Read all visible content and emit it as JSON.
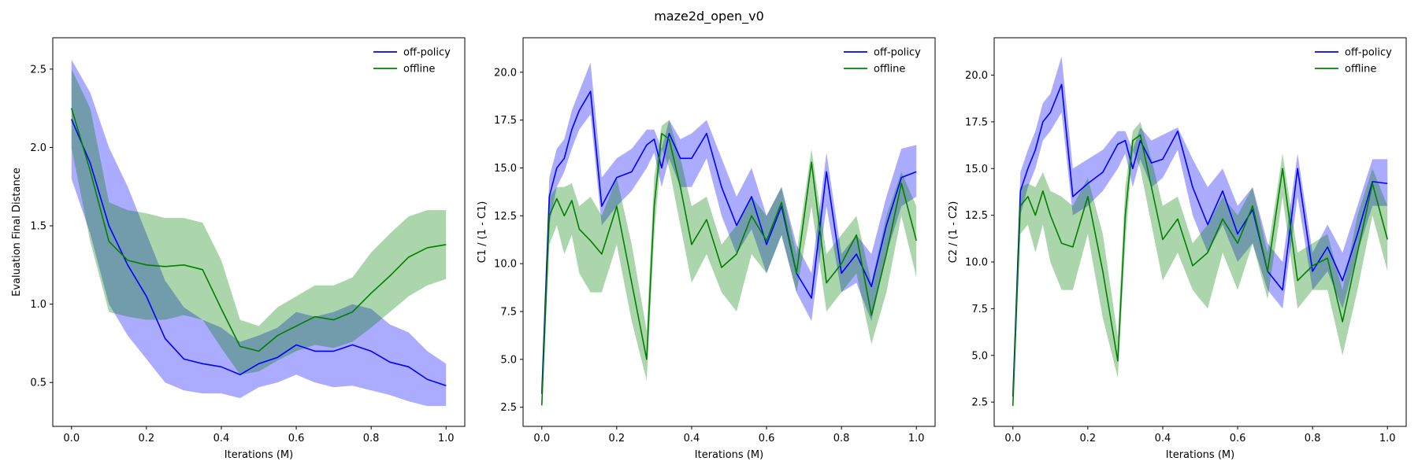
{
  "figure": {
    "title": "maze2d_open_v0"
  },
  "chart_data": [
    {
      "type": "line",
      "title": "",
      "xlabel": "Iterations (M)",
      "ylabel": "Evaluation Final Distance",
      "xlim": [
        -0.05,
        1.05
      ],
      "ylim": [
        0.22,
        2.7
      ],
      "xticks": [
        "0.0",
        "0.2",
        "0.4",
        "0.6",
        "0.8",
        "1.0"
      ],
      "yticks": [
        "0.5",
        "1.0",
        "1.5",
        "2.0",
        "2.5"
      ],
      "yticks_values": [
        0.5,
        1.0,
        1.5,
        2.0,
        2.5
      ],
      "legend": "top-right",
      "grid": false,
      "x": [
        0,
        0.05,
        0.1,
        0.15,
        0.2,
        0.25,
        0.3,
        0.35,
        0.4,
        0.45,
        0.5,
        0.55,
        0.6,
        0.65,
        0.7,
        0.75,
        0.8,
        0.85,
        0.9,
        0.95,
        1.0
      ],
      "series": [
        {
          "name": "off-policy",
          "color": "#0000ff",
          "values": [
            2.18,
            1.9,
            1.5,
            1.25,
            1.05,
            0.78,
            0.65,
            0.62,
            0.6,
            0.55,
            0.62,
            0.66,
            0.74,
            0.7,
            0.7,
            0.74,
            0.7,
            0.63,
            0.6,
            0.52,
            0.48
          ],
          "lower": [
            1.8,
            1.45,
            1.0,
            0.8,
            0.65,
            0.5,
            0.45,
            0.43,
            0.43,
            0.4,
            0.47,
            0.5,
            0.55,
            0.5,
            0.47,
            0.48,
            0.45,
            0.42,
            0.38,
            0.35,
            0.35
          ],
          "upper": [
            2.56,
            2.35,
            2.0,
            1.75,
            1.45,
            1.15,
            0.98,
            0.9,
            0.85,
            0.76,
            0.8,
            0.85,
            0.95,
            0.92,
            0.95,
            1.0,
            0.97,
            0.87,
            0.82,
            0.7,
            0.62
          ]
        },
        {
          "name": "offline",
          "color": "#008000",
          "values": [
            2.25,
            1.85,
            1.4,
            1.28,
            1.25,
            1.24,
            1.25,
            1.22,
            0.97,
            0.73,
            0.7,
            0.8,
            0.86,
            0.92,
            0.9,
            0.95,
            1.07,
            1.18,
            1.3,
            1.36,
            1.38
          ],
          "lower": [
            2.0,
            1.4,
            0.95,
            0.92,
            0.9,
            0.9,
            0.93,
            0.9,
            0.72,
            0.55,
            0.57,
            0.64,
            0.7,
            0.74,
            0.72,
            0.76,
            0.85,
            0.95,
            1.05,
            1.12,
            1.16
          ],
          "upper": [
            2.5,
            2.25,
            1.65,
            1.6,
            1.58,
            1.55,
            1.55,
            1.52,
            1.28,
            0.9,
            0.86,
            0.98,
            1.05,
            1.12,
            1.12,
            1.17,
            1.33,
            1.45,
            1.56,
            1.6,
            1.6
          ]
        }
      ]
    },
    {
      "type": "line",
      "title": "",
      "xlabel": "Iterations (M)",
      "ylabel": "C1 / (1 - C1)",
      "xlim": [
        -0.05,
        1.05
      ],
      "ylim": [
        1.5,
        21.8
      ],
      "xticks": [
        "0.0",
        "0.2",
        "0.4",
        "0.6",
        "0.8",
        "1.0"
      ],
      "yticks": [
        "2.5",
        "5.0",
        "7.5",
        "10.0",
        "12.5",
        "15.0",
        "17.5",
        "20.0"
      ],
      "yticks_values": [
        2.5,
        5.0,
        7.5,
        10.0,
        12.5,
        15.0,
        17.5,
        20.0
      ],
      "legend": "top-right",
      "grid": false,
      "x": [
        0,
        0.02,
        0.04,
        0.06,
        0.08,
        0.1,
        0.13,
        0.16,
        0.2,
        0.24,
        0.28,
        0.3,
        0.32,
        0.34,
        0.37,
        0.4,
        0.44,
        0.48,
        0.52,
        0.56,
        0.6,
        0.64,
        0.68,
        0.72,
        0.76,
        0.8,
        0.84,
        0.88,
        0.92,
        0.96,
        1.0
      ],
      "series": [
        {
          "name": "off-policy",
          "color": "#0000ff",
          "values": [
            3.2,
            13.5,
            15.0,
            15.5,
            17.0,
            18.0,
            19.0,
            13.0,
            14.5,
            14.8,
            16.2,
            16.5,
            15.0,
            16.8,
            15.5,
            15.5,
            16.8,
            14.0,
            12.0,
            13.5,
            11.0,
            13.0,
            9.5,
            8.2,
            14.8,
            9.5,
            10.5,
            8.8,
            12.0,
            14.5,
            14.8
          ],
          "lower": [
            2.8,
            12.0,
            14.0,
            14.8,
            16.0,
            17.0,
            17.8,
            12.0,
            13.0,
            13.8,
            15.0,
            15.8,
            14.0,
            15.5,
            14.0,
            14.0,
            15.5,
            12.5,
            10.5,
            11.8,
            9.5,
            11.5,
            8.5,
            7.0,
            13.0,
            8.5,
            9.0,
            7.0,
            10.5,
            13.0,
            13.5
          ],
          "upper": [
            3.8,
            14.5,
            16.0,
            16.5,
            18.0,
            19.0,
            20.5,
            14.5,
            15.5,
            16.0,
            17.0,
            17.0,
            16.0,
            17.5,
            16.5,
            16.8,
            17.5,
            15.5,
            13.5,
            15.0,
            12.5,
            14.0,
            11.0,
            9.5,
            15.8,
            10.5,
            11.5,
            10.5,
            13.5,
            16.0,
            16.2
          ]
        },
        {
          "name": "offline",
          "color": "#008000",
          "values": [
            2.6,
            12.5,
            13.4,
            12.5,
            13.3,
            11.8,
            11.2,
            10.5,
            13.0,
            9.0,
            5.0,
            13.0,
            16.8,
            16.5,
            14.0,
            11.0,
            12.3,
            9.8,
            10.5,
            12.5,
            11.2,
            13.2,
            9.5,
            15.3,
            9.0,
            10.0,
            11.5,
            7.3,
            10.5,
            14.2,
            11.2
          ],
          "lower": [
            2.2,
            11.0,
            12.0,
            10.5,
            11.5,
            9.5,
            8.5,
            8.5,
            11.0,
            7.0,
            3.9,
            11.5,
            16.0,
            15.0,
            12.0,
            9.0,
            10.5,
            8.5,
            7.5,
            10.5,
            9.5,
            11.5,
            8.5,
            13.0,
            7.5,
            8.5,
            9.5,
            5.8,
            8.5,
            12.5,
            9.3
          ],
          "upper": [
            3.0,
            13.5,
            14.0,
            14.0,
            14.2,
            13.0,
            13.5,
            12.5,
            14.5,
            11.0,
            6.5,
            14.5,
            17.2,
            17.5,
            15.5,
            13.0,
            13.5,
            11.0,
            12.0,
            13.5,
            12.5,
            14.0,
            10.5,
            16.0,
            10.5,
            11.5,
            12.5,
            9.0,
            12.5,
            14.8,
            13.0
          ]
        }
      ]
    },
    {
      "type": "line",
      "title": "",
      "xlabel": "Iterations (M)",
      "ylabel": "C2 / (1 - C2)",
      "xlim": [
        -0.05,
        1.05
      ],
      "ylim": [
        1.2,
        22.0
      ],
      "xticks": [
        "0.0",
        "0.2",
        "0.4",
        "0.6",
        "0.8",
        "1.0"
      ],
      "yticks": [
        "2.5",
        "5.0",
        "7.5",
        "10.0",
        "12.5",
        "15.0",
        "17.5",
        "20.0"
      ],
      "yticks_values": [
        2.5,
        5.0,
        7.5,
        10.0,
        12.5,
        15.0,
        17.5,
        20.0
      ],
      "legend": "top-right",
      "grid": false,
      "x": [
        0,
        0.02,
        0.04,
        0.06,
        0.08,
        0.1,
        0.13,
        0.16,
        0.2,
        0.24,
        0.28,
        0.3,
        0.32,
        0.34,
        0.37,
        0.4,
        0.44,
        0.48,
        0.52,
        0.56,
        0.6,
        0.64,
        0.68,
        0.72,
        0.76,
        0.8,
        0.84,
        0.88,
        0.92,
        0.96,
        1.0
      ],
      "series": [
        {
          "name": "off-policy",
          "color": "#0000ff",
          "values": [
            2.8,
            13.8,
            15.0,
            16.0,
            17.5,
            18.0,
            19.5,
            13.5,
            14.2,
            14.8,
            16.3,
            16.5,
            15.0,
            16.5,
            15.3,
            15.5,
            17.0,
            14.0,
            12.0,
            13.8,
            11.5,
            12.8,
            9.5,
            8.5,
            15.0,
            9.5,
            10.8,
            9.0,
            11.5,
            14.3,
            14.2
          ],
          "lower": [
            2.4,
            12.5,
            14.0,
            15.0,
            16.5,
            17.0,
            18.0,
            12.5,
            13.0,
            13.8,
            15.0,
            15.8,
            14.0,
            15.5,
            14.0,
            14.5,
            16.0,
            12.5,
            10.5,
            12.0,
            10.0,
            11.0,
            8.5,
            7.5,
            13.5,
            8.5,
            9.5,
            7.5,
            10.5,
            13.0,
            13.0
          ],
          "upper": [
            3.2,
            14.8,
            16.0,
            17.0,
            18.5,
            19.0,
            21.0,
            15.0,
            15.5,
            16.0,
            17.0,
            17.0,
            16.0,
            17.2,
            16.5,
            16.8,
            17.2,
            15.5,
            14.0,
            15.0,
            13.0,
            14.0,
            11.0,
            10.0,
            15.8,
            10.5,
            12.0,
            10.5,
            13.0,
            15.5,
            15.5
          ]
        },
        {
          "name": "offline",
          "color": "#008000",
          "values": [
            2.3,
            13.0,
            13.5,
            12.5,
            13.8,
            12.5,
            11.0,
            10.8,
            13.5,
            9.5,
            4.7,
            12.5,
            16.5,
            16.8,
            14.0,
            11.2,
            12.3,
            9.8,
            10.5,
            12.3,
            11.0,
            13.0,
            9.5,
            15.0,
            9.0,
            9.8,
            10.2,
            6.8,
            10.5,
            14.2,
            11.2
          ],
          "lower": [
            2.0,
            11.5,
            12.0,
            10.5,
            12.0,
            10.0,
            8.5,
            8.5,
            11.5,
            7.0,
            3.8,
            11.0,
            16.0,
            15.0,
            12.0,
            9.0,
            10.5,
            8.5,
            7.5,
            10.5,
            8.5,
            11.0,
            8.0,
            13.5,
            7.5,
            8.5,
            8.5,
            5.0,
            8.5,
            12.5,
            9.5
          ],
          "upper": [
            2.6,
            14.0,
            14.2,
            14.0,
            14.8,
            13.8,
            13.5,
            13.0,
            14.5,
            11.5,
            6.0,
            14.0,
            17.0,
            17.5,
            15.5,
            13.0,
            13.5,
            11.0,
            12.0,
            13.5,
            12.5,
            14.0,
            10.5,
            15.8,
            10.5,
            11.0,
            11.5,
            8.5,
            12.5,
            15.0,
            13.0
          ]
        }
      ]
    }
  ]
}
